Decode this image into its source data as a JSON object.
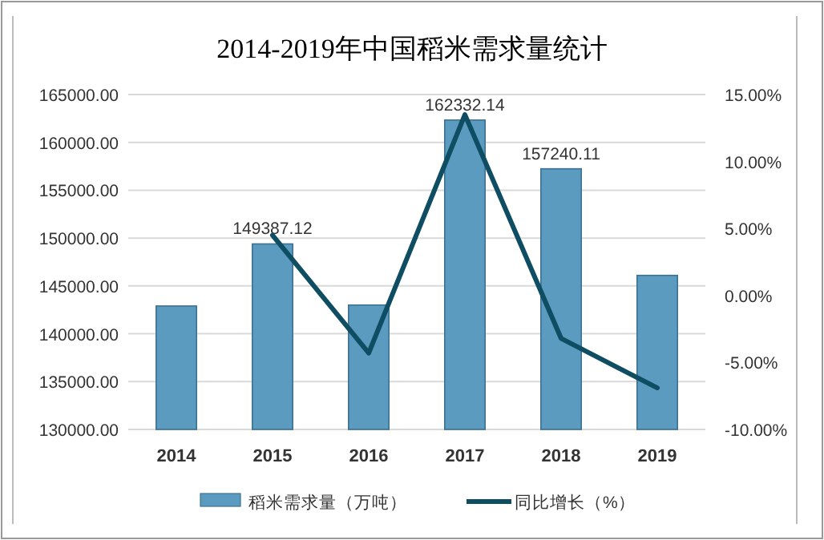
{
  "chart_data": {
    "type": "bar",
    "title": "2014-2019年中国稻米需求量统计",
    "categories": [
      "2014",
      "2015",
      "2016",
      "2017",
      "2018",
      "2019"
    ],
    "series": [
      {
        "name": "稻米需求量（万吨）",
        "color": "#5b9bbf",
        "values": [
          142900,
          149387.12,
          143000,
          162332.14,
          157240.11,
          146100
        ],
        "value_labels": [
          null,
          "149387.12",
          null,
          "162332.14",
          "157240.11",
          null
        ]
      },
      {
        "name": "同比增长（%）",
        "type": "line",
        "axis": "y2",
        "color": "#0f4d63",
        "marker": "none",
        "values": [
          null,
          4.5,
          -4.3,
          13.5,
          -3.2,
          -6.9
        ]
      }
    ],
    "ylim": [
      130000,
      165000
    ],
    "yticks": [
      {
        "value": 130000,
        "label": "130000.00"
      },
      {
        "value": 135000,
        "label": "135000.00"
      },
      {
        "value": 140000,
        "label": "140000.00"
      },
      {
        "value": 145000,
        "label": "145000.00"
      },
      {
        "value": 150000,
        "label": "150000.00"
      },
      {
        "value": 155000,
        "label": "155000.00"
      },
      {
        "value": 160000,
        "label": "160000.00"
      },
      {
        "value": 165000,
        "label": "165000.00"
      }
    ],
    "y2lim": [
      -10,
      15
    ],
    "y2ticks": [
      {
        "value": -10,
        "label": "-10.00%"
      },
      {
        "value": -5,
        "label": "-5.00%"
      },
      {
        "value": 0,
        "label": "0.00%"
      },
      {
        "value": 5,
        "label": "5.00%"
      },
      {
        "value": 10,
        "label": "10.00%"
      },
      {
        "value": 15,
        "label": "15.00%"
      }
    ],
    "grid": "y",
    "legend": "bottom"
  }
}
